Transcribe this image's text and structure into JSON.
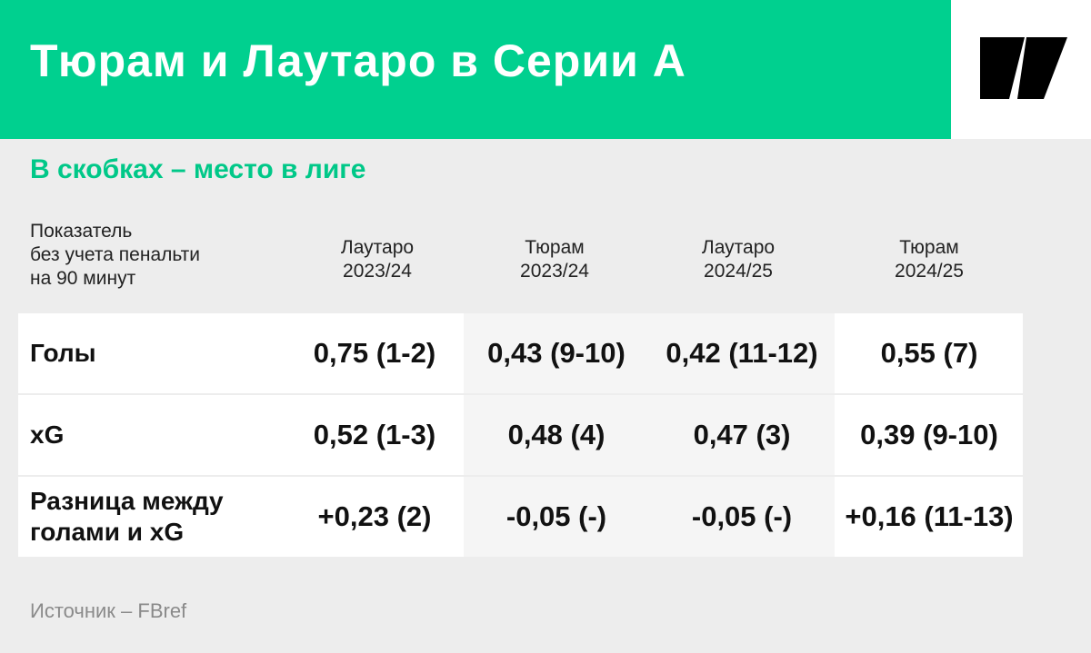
{
  "header": {
    "title": "Тюрам и Лаутаро в Серии А",
    "brand_color": "#00d08f",
    "logo_icon": "brand-logo-icon"
  },
  "subtitle": "В скобках – место в лиге",
  "source": "Источник – FBref",
  "chart_data": {
    "type": "table",
    "title": "Тюрам и Лаутаро в Серии А",
    "subtitle": "В скобках – место в лиге",
    "metric_header": [
      "Показатель",
      "без учета пенальти",
      "на 90 минут"
    ],
    "columns": [
      {
        "player": "Лаутаро",
        "season": "2023/24"
      },
      {
        "player": "Тюрам",
        "season": "2023/24"
      },
      {
        "player": "Лаутаро",
        "season": "2024/25"
      },
      {
        "player": "Тюрам",
        "season": "2024/25"
      }
    ],
    "rows": [
      {
        "label": [
          "Голы"
        ],
        "values": [
          "0,75 (1-2)",
          "0,43 (9-10)",
          "0,42 (11-12)",
          "0,55 (7)"
        ]
      },
      {
        "label": [
          "xG"
        ],
        "values": [
          "0,52 (1-3)",
          "0,48 (4)",
          "0,47 (3)",
          "0,39 (9-10)"
        ]
      },
      {
        "label": [
          "Разница между",
          "голами и xG"
        ],
        "values": [
          "+0,23 (2)",
          "-0,05 (-)",
          "-0,05 (-)",
          "+0,16 (11-13)"
        ]
      }
    ]
  }
}
